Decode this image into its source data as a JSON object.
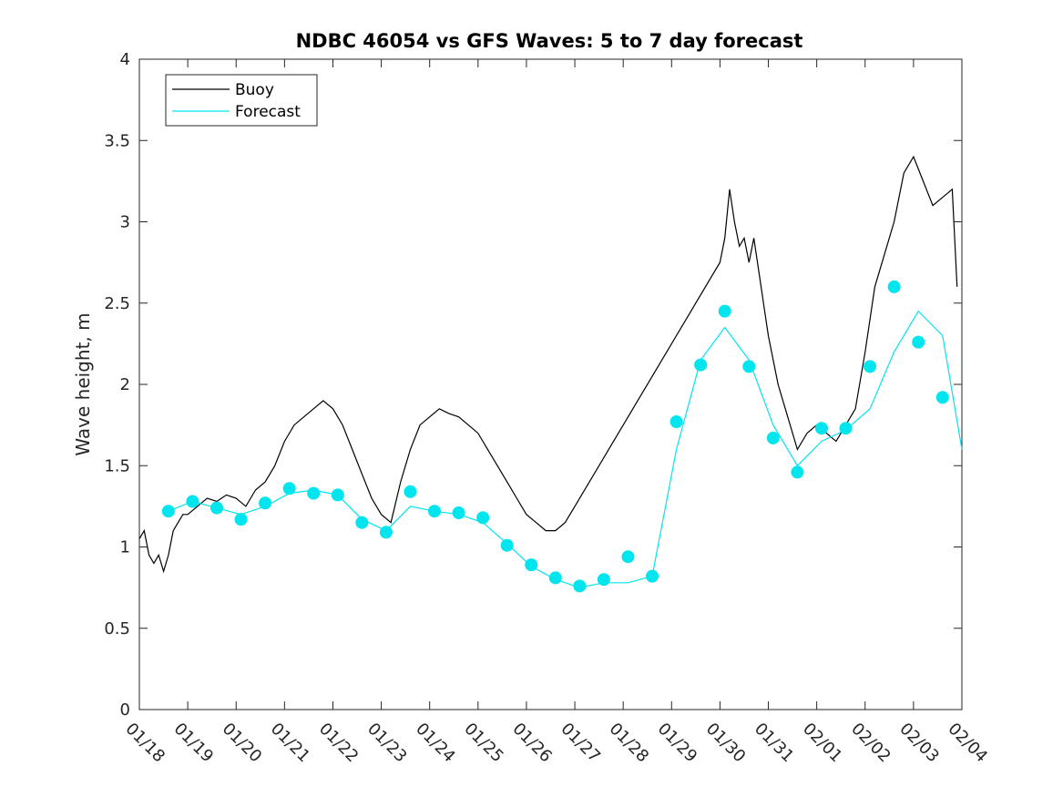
{
  "chart_data": {
    "type": "line",
    "title": "NDBC 46054 vs GFS Waves: 5 to 7 day forecast",
    "xlabel": "",
    "ylabel": "Wave height, m",
    "xlim": [
      0,
      17
    ],
    "ylim": [
      0,
      4
    ],
    "x_tick_values": [
      0,
      1,
      2,
      3,
      4,
      5,
      6,
      7,
      8,
      9,
      10,
      11,
      12,
      13,
      14,
      15,
      16,
      17
    ],
    "x_tick_labels": [
      "01/18",
      "01/19",
      "01/20",
      "01/21",
      "01/22",
      "01/23",
      "01/24",
      "01/25",
      "01/26",
      "01/27",
      "01/28",
      "01/29",
      "01/30",
      "01/31",
      "02/01",
      "02/02",
      "02/03",
      "02/04"
    ],
    "y_tick_values": [
      0,
      0.5,
      1,
      1.5,
      2,
      2.5,
      3,
      3.5,
      4
    ],
    "y_tick_labels": [
      "0",
      "0.5",
      "1",
      "1.5",
      "2",
      "2.5",
      "3",
      "3.5",
      "4"
    ],
    "grid": false,
    "legend_position": "top-left",
    "legend": [
      "Buoy",
      "Forecast"
    ],
    "colors": {
      "buoy": "#000000",
      "forecast": "#00e5ee",
      "axis": "#262626"
    },
    "series": [
      {
        "name": "Buoy",
        "x": [
          0,
          0.1,
          0.2,
          0.3,
          0.4,
          0.5,
          0.6,
          0.7,
          0.8,
          0.9,
          1.0,
          1.2,
          1.4,
          1.6,
          1.8,
          2.0,
          2.2,
          2.4,
          2.6,
          2.8,
          3.0,
          3.2,
          3.4,
          3.6,
          3.8,
          4.0,
          4.2,
          4.4,
          4.6,
          4.8,
          5.0,
          5.2,
          5.4,
          5.6,
          5.8,
          6.0,
          6.2,
          6.4,
          6.6,
          6.8,
          7.0,
          7.2,
          7.4,
          7.6,
          7.8,
          8.0,
          8.2,
          8.4,
          8.6,
          8.8,
          9.0,
          12.0,
          12.1,
          12.2,
          12.3,
          12.4,
          12.5,
          12.6,
          12.7,
          12.8,
          12.9,
          13.0,
          13.2,
          13.4,
          13.6,
          13.8,
          14.0,
          14.2,
          14.4,
          14.6,
          14.8,
          15.0,
          15.2,
          15.4,
          15.6,
          15.8,
          16.0,
          16.2,
          16.4,
          16.6,
          16.8,
          16.9
        ],
        "values": [
          1.05,
          1.1,
          0.95,
          0.9,
          0.95,
          0.85,
          0.95,
          1.1,
          1.15,
          1.2,
          1.2,
          1.25,
          1.3,
          1.28,
          1.32,
          1.3,
          1.25,
          1.35,
          1.4,
          1.5,
          1.65,
          1.75,
          1.8,
          1.85,
          1.9,
          1.85,
          1.75,
          1.6,
          1.45,
          1.3,
          1.2,
          1.15,
          1.4,
          1.6,
          1.75,
          1.8,
          1.85,
          1.82,
          1.8,
          1.75,
          1.7,
          1.6,
          1.5,
          1.4,
          1.3,
          1.2,
          1.15,
          1.1,
          1.1,
          1.15,
          1.25,
          2.75,
          2.9,
          3.2,
          3.0,
          2.85,
          2.9,
          2.75,
          2.9,
          2.7,
          2.5,
          2.3,
          2.0,
          1.8,
          1.6,
          1.7,
          1.75,
          1.7,
          1.65,
          1.75,
          1.85,
          2.2,
          2.6,
          2.8,
          3.0,
          3.3,
          3.4,
          3.25,
          3.1,
          3.15,
          3.2,
          2.6
        ]
      },
      {
        "name": "Forecast",
        "x": [
          0.6,
          1.1,
          1.6,
          2.1,
          2.6,
          3.1,
          3.6,
          4.1,
          4.6,
          5.1,
          5.6,
          6.1,
          6.6,
          7.1,
          7.6,
          8.1,
          8.6,
          9.1,
          9.6,
          10.1,
          10.6,
          11.1,
          11.6,
          12.1,
          12.6,
          13.1,
          13.6,
          14.1,
          14.6,
          15.1,
          15.6,
          16.1,
          16.6,
          17.0
        ],
        "values": [
          1.22,
          1.28,
          1.24,
          1.2,
          1.25,
          1.33,
          1.35,
          1.32,
          1.17,
          1.1,
          1.25,
          1.22,
          1.2,
          1.15,
          1.02,
          0.88,
          0.8,
          0.75,
          0.78,
          0.78,
          0.82,
          1.6,
          2.15,
          2.35,
          2.15,
          1.75,
          1.5,
          1.65,
          1.72,
          1.85,
          2.2,
          2.45,
          2.3,
          1.6
        ]
      }
    ],
    "forecast_markers": {
      "x": [
        0.6,
        1.1,
        1.6,
        2.1,
        2.6,
        3.1,
        3.6,
        4.1,
        4.6,
        5.1,
        5.6,
        6.1,
        6.6,
        7.1,
        7.6,
        8.1,
        8.6,
        9.1,
        9.6,
        10.1,
        10.6,
        11.1,
        11.6,
        12.1,
        12.6,
        13.1,
        13.6,
        14.1,
        14.6,
        15.1,
        15.6,
        16.1,
        16.6
      ],
      "values": [
        1.22,
        1.28,
        1.24,
        1.17,
        1.27,
        1.36,
        1.33,
        1.32,
        1.15,
        1.09,
        1.34,
        1.22,
        1.21,
        1.18,
        1.01,
        0.89,
        0.81,
        0.76,
        0.8,
        0.94,
        0.82,
        1.77,
        2.12,
        2.45,
        2.11,
        1.67,
        1.46,
        1.73,
        1.73,
        2.11,
        2.6,
        2.26,
        1.92
      ]
    }
  }
}
